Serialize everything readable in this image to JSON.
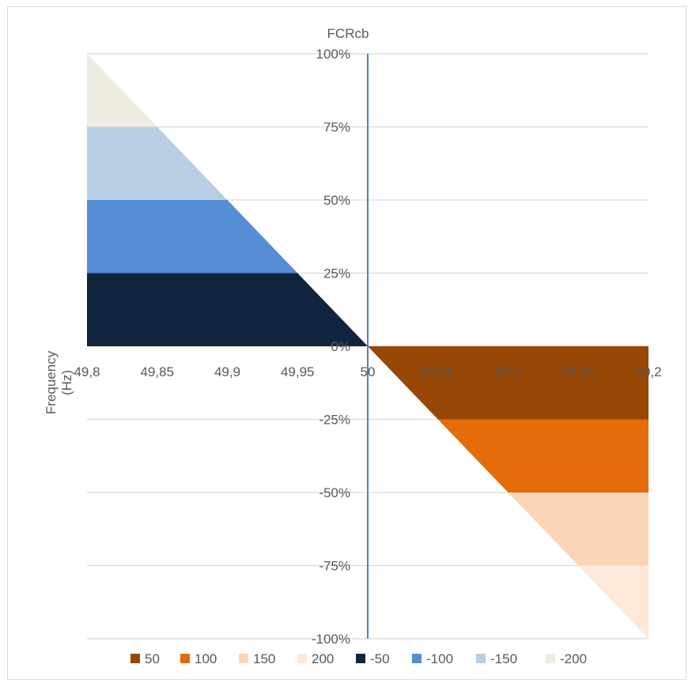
{
  "chart_data": {
    "type": "area",
    "title": "FCRcb",
    "xlabel": "Frequency (Hz)",
    "ylabel": "",
    "xlim": [
      49.8,
      50.2
    ],
    "ylim": [
      -100,
      100
    ],
    "x_tick_labels": [
      "49,8",
      "49,85",
      "49,9",
      "49,95",
      "50",
      "50,05",
      "50,1",
      "50,15",
      "50,2"
    ],
    "x_tick_values": [
      49.8,
      49.85,
      49.9,
      49.95,
      50,
      50.05,
      50.1,
      50.15,
      50.2
    ],
    "y_tick_labels": [
      "100%",
      "75%",
      "50%",
      "25%",
      "0%",
      "-25%",
      "-50%",
      "-75%",
      "-100%"
    ],
    "y_tick_values": [
      100,
      75,
      50,
      25,
      0,
      -25,
      -50,
      -75,
      -100
    ],
    "grid": true,
    "legend_position": "bottom",
    "series": [
      {
        "name": "50",
        "color": "#974706",
        "y_range": [
          -25,
          0
        ],
        "x": [
          50.0,
          50.05,
          50.2,
          50.2
        ],
        "y": [
          0,
          -25,
          -25,
          0
        ]
      },
      {
        "name": "100",
        "color": "#e46c0a",
        "y_range": [
          -50,
          -25
        ],
        "x": [
          50.05,
          50.1,
          50.2,
          50.2
        ],
        "y": [
          -25,
          -50,
          -50,
          -25
        ]
      },
      {
        "name": "150",
        "color": "#fbd5b5",
        "y_range": [
          -75,
          -50
        ],
        "x": [
          50.1,
          50.15,
          50.2,
          50.2
        ],
        "y": [
          -50,
          -75,
          -75,
          -50
        ]
      },
      {
        "name": "200",
        "color": "#fde9d9",
        "y_range": [
          -100,
          -75
        ],
        "x": [
          50.15,
          50.2,
          50.2
        ],
        "y": [
          -75,
          -100,
          -75
        ]
      },
      {
        "name": "-50",
        "color": "#10243e",
        "y_range": [
          0,
          25
        ],
        "x": [
          49.8,
          49.8,
          49.95,
          50.0
        ],
        "y": [
          0,
          25,
          25,
          0
        ]
      },
      {
        "name": "-100",
        "color": "#558ed5",
        "y_range": [
          25,
          50
        ],
        "x": [
          49.8,
          49.8,
          49.9,
          49.95
        ],
        "y": [
          25,
          50,
          50,
          25
        ]
      },
      {
        "name": "-150",
        "color": "#b9cde5",
        "y_range": [
          50,
          75
        ],
        "x": [
          49.8,
          49.8,
          49.85,
          49.9
        ],
        "y": [
          50,
          75,
          75,
          50
        ]
      },
      {
        "name": "-200",
        "color": "#eeece1",
        "y_range": [
          75,
          100
        ],
        "x": [
          49.8,
          49.8,
          49.85
        ],
        "y": [
          75,
          100,
          75
        ]
      }
    ],
    "axis_color": "#4f81bd",
    "grid_color": "#d9d9d9"
  }
}
